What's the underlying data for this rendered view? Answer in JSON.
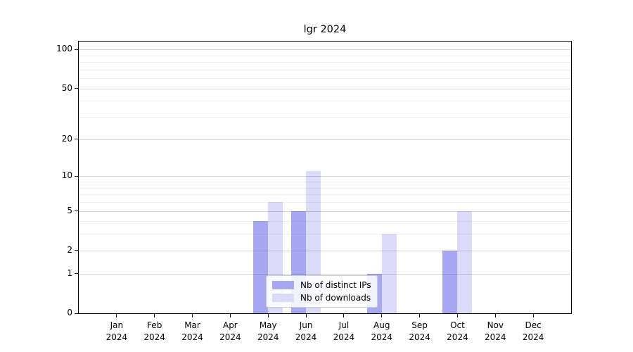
{
  "chart_data": {
    "type": "bar",
    "title": "lgr 2024",
    "categories": [
      "Jan 2024",
      "Feb 2024",
      "Mar 2024",
      "Apr 2024",
      "May 2024",
      "Jun 2024",
      "Jul 2024",
      "Aug 2024",
      "Sep 2024",
      "Oct 2024",
      "Nov 2024",
      "Dec 2024"
    ],
    "series": [
      {
        "name": "Nb of distinct IPs",
        "color": "#a8a8f2",
        "values": [
          0,
          0,
          0,
          0,
          4,
          5,
          0,
          1,
          0,
          2,
          0,
          0
        ]
      },
      {
        "name": "Nb of downloads",
        "color": "#dbdbf9",
        "values": [
          0,
          0,
          0,
          0,
          6,
          11,
          0,
          3,
          0,
          5,
          0,
          0
        ]
      }
    ],
    "xlabel": "",
    "ylabel": "",
    "yscale": "log1p",
    "ylim": [
      0,
      115
    ],
    "y_major_ticks": [
      0,
      1,
      2,
      5,
      10,
      20,
      50,
      100
    ],
    "y_minor_gridlines": [
      3,
      4,
      6,
      7,
      8,
      9,
      30,
      40,
      60,
      70,
      80,
      90
    ],
    "grid": "on",
    "legend_position": "lower center"
  }
}
